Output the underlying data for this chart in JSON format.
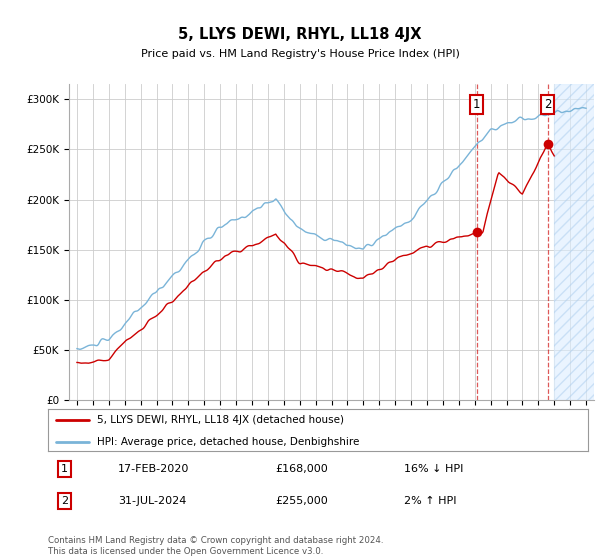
{
  "title": "5, LLYS DEWI, RHYL, LL18 4JX",
  "subtitle": "Price paid vs. HM Land Registry's House Price Index (HPI)",
  "ytick_values": [
    0,
    50000,
    100000,
    150000,
    200000,
    250000,
    300000
  ],
  "ylim": [
    0,
    315000
  ],
  "xlim_start": 1994.5,
  "xlim_end": 2027.5,
  "transaction1": {
    "date": "17-FEB-2020",
    "price": 168000,
    "year": 2020.12,
    "label": "1",
    "hpi_pct": "16% ↓ HPI"
  },
  "transaction2": {
    "date": "31-JUL-2024",
    "price": 255000,
    "year": 2024.58,
    "label": "2",
    "hpi_pct": "2% ↑ HPI"
  },
  "hpi_line_color": "#7ab4d8",
  "price_line_color": "#cc0000",
  "marker_color": "#cc0000",
  "hatch_start": 2025.0,
  "legend1_label": "5, LLYS DEWI, RHYL, LL18 4JX (detached house)",
  "legend2_label": "HPI: Average price, detached house, Denbighshire",
  "footer": "Contains HM Land Registry data © Crown copyright and database right 2024.\nThis data is licensed under the Open Government Licence v3.0.",
  "background_color": "#ffffff",
  "grid_color": "#cccccc",
  "box_color": "#cc0000"
}
